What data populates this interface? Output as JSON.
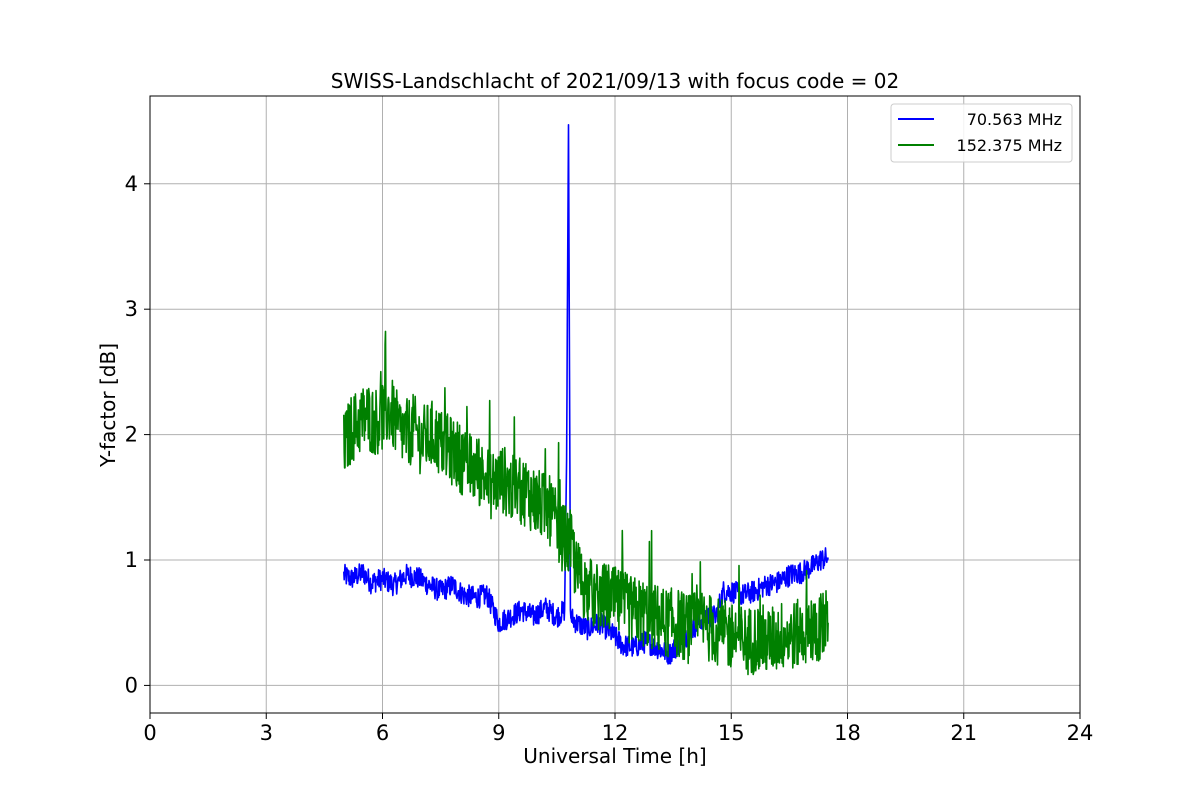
{
  "chart_data": {
    "type": "line",
    "title": "SWISS-Landschlacht of 2021/09/13 with focus code = 02",
    "xlabel": "Universal Time [h]",
    "ylabel": "Y-factor [dB]",
    "xlim": [
      0,
      24
    ],
    "ylim": [
      -0.22,
      4.7
    ],
    "xticks": [
      0,
      3,
      6,
      9,
      12,
      15,
      18,
      21,
      24
    ],
    "yticks": [
      0,
      1,
      2,
      3,
      4
    ],
    "grid": true,
    "legend_position": "top-right",
    "series": [
      {
        "name": "70.563 MHz",
        "color": "#0000ff",
        "x": [
          5.0,
          5.2,
          5.5,
          5.7,
          6.0,
          6.3,
          6.6,
          6.9,
          7.2,
          7.5,
          7.8,
          8.1,
          8.4,
          8.7,
          9.0,
          9.3,
          9.6,
          9.9,
          10.2,
          10.5,
          10.7,
          10.75,
          10.8,
          10.85,
          11.0,
          11.3,
          11.6,
          11.9,
          12.2,
          12.5,
          12.8,
          13.1,
          13.4,
          13.7,
          14.0,
          14.3,
          14.6,
          14.8,
          15.0,
          15.3,
          15.6,
          15.9,
          16.2,
          16.5,
          16.8,
          17.1,
          17.3,
          17.5
        ],
        "values": [
          0.88,
          0.85,
          0.9,
          0.82,
          0.85,
          0.8,
          0.88,
          0.86,
          0.8,
          0.75,
          0.8,
          0.72,
          0.7,
          0.72,
          0.5,
          0.55,
          0.6,
          0.55,
          0.62,
          0.55,
          0.6,
          1.8,
          4.47,
          0.55,
          0.5,
          0.45,
          0.5,
          0.42,
          0.32,
          0.3,
          0.35,
          0.3,
          0.25,
          0.35,
          0.45,
          0.55,
          0.55,
          0.75,
          0.75,
          0.72,
          0.75,
          0.8,
          0.82,
          0.88,
          0.9,
          0.95,
          1.0,
          1.02
        ]
      },
      {
        "name": "152.375 MHz",
        "color": "#008000",
        "x": [
          5.0,
          5.2,
          5.4,
          5.6,
          5.8,
          6.0,
          6.2,
          6.4,
          6.6,
          6.8,
          7.0,
          7.3,
          7.6,
          7.9,
          8.2,
          8.5,
          8.8,
          9.1,
          9.4,
          9.7,
          10.0,
          10.3,
          10.6,
          10.9,
          11.0,
          11.2,
          11.5,
          11.8,
          12.1,
          12.4,
          12.7,
          13.0,
          13.3,
          13.6,
          13.9,
          14.2,
          14.5,
          14.8,
          15.1,
          15.4,
          15.7,
          16.0,
          16.3,
          16.6,
          16.9,
          17.2,
          17.5
        ],
        "values": [
          1.9,
          2.05,
          2.1,
          2.15,
          2.1,
          2.15,
          2.2,
          2.05,
          2.0,
          2.05,
          1.95,
          2.0,
          1.9,
          1.85,
          1.75,
          1.7,
          1.6,
          1.65,
          1.55,
          1.55,
          1.45,
          1.4,
          1.2,
          1.1,
          0.9,
          0.8,
          0.7,
          0.7,
          0.65,
          0.6,
          0.58,
          0.55,
          0.5,
          0.5,
          0.45,
          0.5,
          0.45,
          0.4,
          0.4,
          0.35,
          0.38,
          0.35,
          0.4,
          0.4,
          0.42,
          0.45,
          0.5
        ]
      }
    ]
  }
}
